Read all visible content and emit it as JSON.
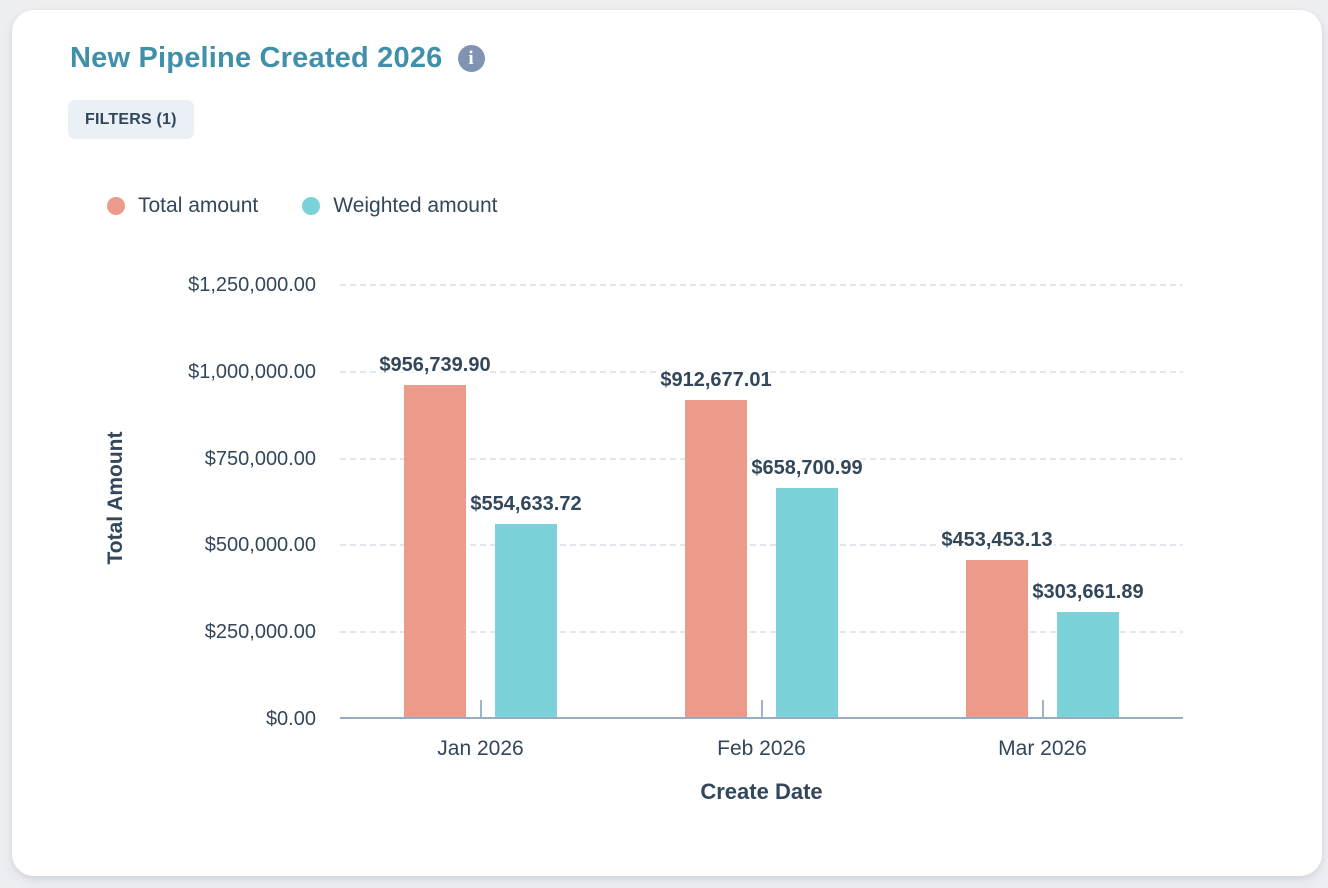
{
  "header": {
    "title": "New Pipeline Created 2026",
    "filters_label": "FILTERS (1)",
    "info_icon_glyph": "i"
  },
  "chart_data": {
    "type": "bar",
    "title": "New Pipeline Created 2026",
    "xlabel": "Create Date",
    "ylabel": "Total Amount",
    "categories": [
      "Jan 2026",
      "Feb 2026",
      "Mar 2026"
    ],
    "series": [
      {
        "name": "Total amount",
        "color": "#EC9B8B",
        "values": [
          956739.9,
          912677.01,
          453453.13
        ],
        "labels": [
          "$956,739.90",
          "$912,677.01",
          "$453,453.13"
        ]
      },
      {
        "name": "Weighted amount",
        "color": "#7BD2D8",
        "values": [
          554633.72,
          658700.99,
          303661.89
        ],
        "labels": [
          "$554,633.72",
          "$658,700.99",
          "$303,661.89"
        ]
      }
    ],
    "ylim": [
      0,
      1250000
    ],
    "yticks": [
      {
        "value": 0,
        "label": "$0.00"
      },
      {
        "value": 250000,
        "label": "$250,000.00"
      },
      {
        "value": 500000,
        "label": "$500,000.00"
      },
      {
        "value": 750000,
        "label": "$750,000.00"
      },
      {
        "value": 1000000,
        "label": "$1,000,000.00"
      },
      {
        "value": 1250000,
        "label": "$1,250,000.00"
      }
    ],
    "grid": "horizontal-dashed",
    "legend_position": "top-left"
  },
  "colors": {
    "title": "#4190A9",
    "text": "#33475B",
    "axis_line": "#99ACC2",
    "gridline": "#E2E6EF",
    "chip_bg": "#EAF0F6",
    "card_bg": "#FFFFFF",
    "page_bg": "#ECEEF2",
    "info_icon_bg": "#8193B2",
    "total_amount": "#EC9B8B",
    "weighted_amount": "#7BD2D8"
  }
}
